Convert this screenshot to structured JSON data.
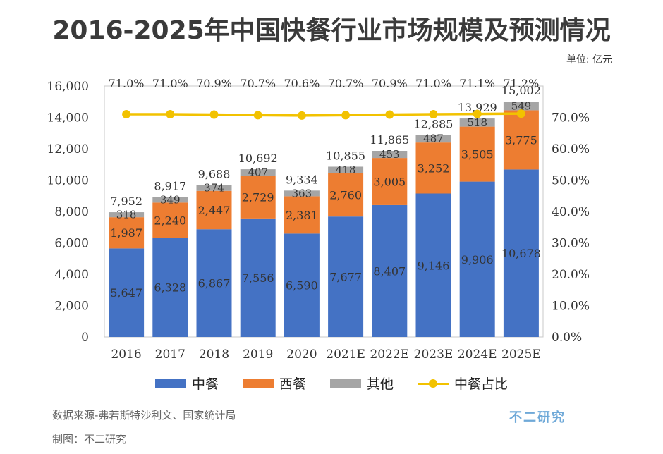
{
  "header": {
    "title": "2016-2025年中国快餐行业市场规模及预测情况",
    "unit": "单位: 亿元"
  },
  "chart_data": {
    "type": "bar",
    "stacked": true,
    "title": "2016-2025年中国快餐行业市场规模及预测情况",
    "unit": "亿元",
    "categories": [
      "2016",
      "2017",
      "2018",
      "2019",
      "2020",
      "2021E",
      "2022E",
      "2023E",
      "2024E",
      "2025E"
    ],
    "series": [
      {
        "name": "中餐",
        "color": "#4472c4",
        "values": [
          5647,
          6328,
          6867,
          7556,
          6590,
          7677,
          8407,
          9146,
          9906,
          10678
        ]
      },
      {
        "name": "西餐",
        "color": "#ed7d31",
        "values": [
          1987,
          2240,
          2447,
          2729,
          2381,
          2760,
          3005,
          3252,
          3505,
          3775
        ]
      },
      {
        "name": "其他",
        "color": "#a5a5a5",
        "values": [
          318,
          349,
          374,
          407,
          363,
          418,
          453,
          487,
          518,
          549
        ]
      }
    ],
    "totals": [
      7952,
      8917,
      9688,
      10692,
      9334,
      10855,
      11865,
      12885,
      13929,
      15002
    ],
    "line_series": {
      "name": "中餐占比",
      "color": "#f2c200",
      "axis": "right",
      "values": [
        71.0,
        71.0,
        70.9,
        70.7,
        70.6,
        70.7,
        70.9,
        71.0,
        71.1,
        71.2
      ],
      "labels": [
        "71.0%",
        "71.0%",
        "70.9%",
        "70.7%",
        "70.6%",
        "70.7%",
        "70.9%",
        "71.0%",
        "71.1%",
        "71.2%"
      ]
    },
    "y_left": {
      "min": 0,
      "max": 16000,
      "ticks": [
        0,
        2000,
        4000,
        6000,
        8000,
        10000,
        12000,
        14000,
        16000
      ],
      "tick_labels": [
        "0",
        "2,000",
        "4,000",
        "6,000",
        "8,000",
        "10,000",
        "12,000",
        "14,000",
        "16,000"
      ]
    },
    "y_right": {
      "min": 0,
      "max": 80,
      "ticks": [
        0,
        10,
        20,
        30,
        40,
        50,
        60,
        70
      ],
      "tick_labels": [
        "0.0%",
        "10.0%",
        "20.0%",
        "30.0%",
        "40.0%",
        "50.0%",
        "60.0%",
        "70.0%"
      ]
    },
    "legend": [
      "中餐",
      "西餐",
      "其他",
      "中餐占比"
    ]
  },
  "footer": {
    "source": "数据来源-弗若斯特沙利文、国家统计局",
    "made_by": "制图：不二研究",
    "brand": "不二研究"
  }
}
